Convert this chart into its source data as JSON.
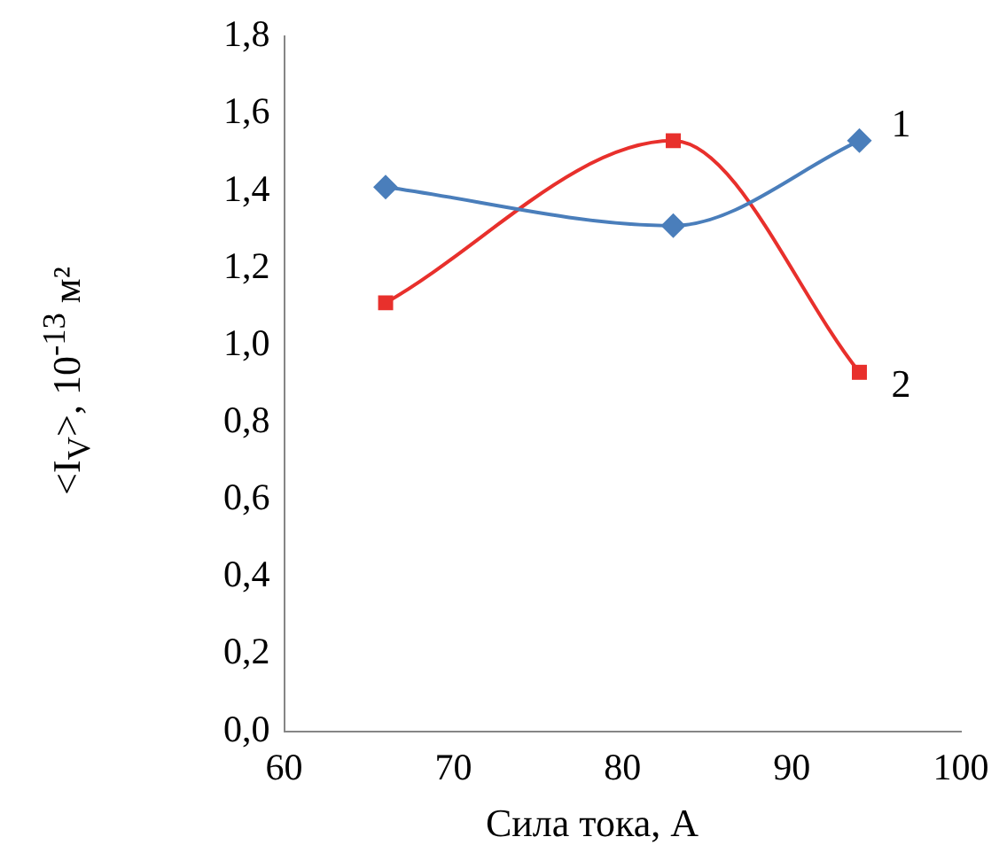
{
  "chart_data": {
    "type": "line",
    "xlabel": "Сила тока, А",
    "ylabel": "<I$_{V}$>, 10$^{-13}$ м²",
    "xlim": [
      60,
      100
    ],
    "xticks": [
      60,
      70,
      80,
      90,
      100
    ],
    "ylim": [
      0,
      1.8
    ],
    "yticks": [
      {
        "value": 0,
        "label": "0,0"
      },
      {
        "value": 0.2,
        "label": "0,2"
      },
      {
        "value": 0.4,
        "label": "0,4"
      },
      {
        "value": 0.6,
        "label": "0,6"
      },
      {
        "value": 0.8,
        "label": "0,8"
      },
      {
        "value": 1.0,
        "label": "1,0"
      },
      {
        "value": 1.2,
        "label": "1,2"
      },
      {
        "value": 1.4,
        "label": "1,4"
      },
      {
        "value": 1.6,
        "label": "1,6"
      },
      {
        "value": 1.8,
        "label": "1,8"
      }
    ],
    "x": [
      66,
      83,
      94
    ],
    "series": [
      {
        "name": "1",
        "color": "#4a7ebb",
        "marker": "diamond",
        "values": [
          1.41,
          1.31,
          1.53
        ]
      },
      {
        "name": "2",
        "color": "#e8302c",
        "marker": "square",
        "values": [
          1.11,
          1.53,
          0.93
        ]
      }
    ],
    "grid": false,
    "legend": false
  }
}
